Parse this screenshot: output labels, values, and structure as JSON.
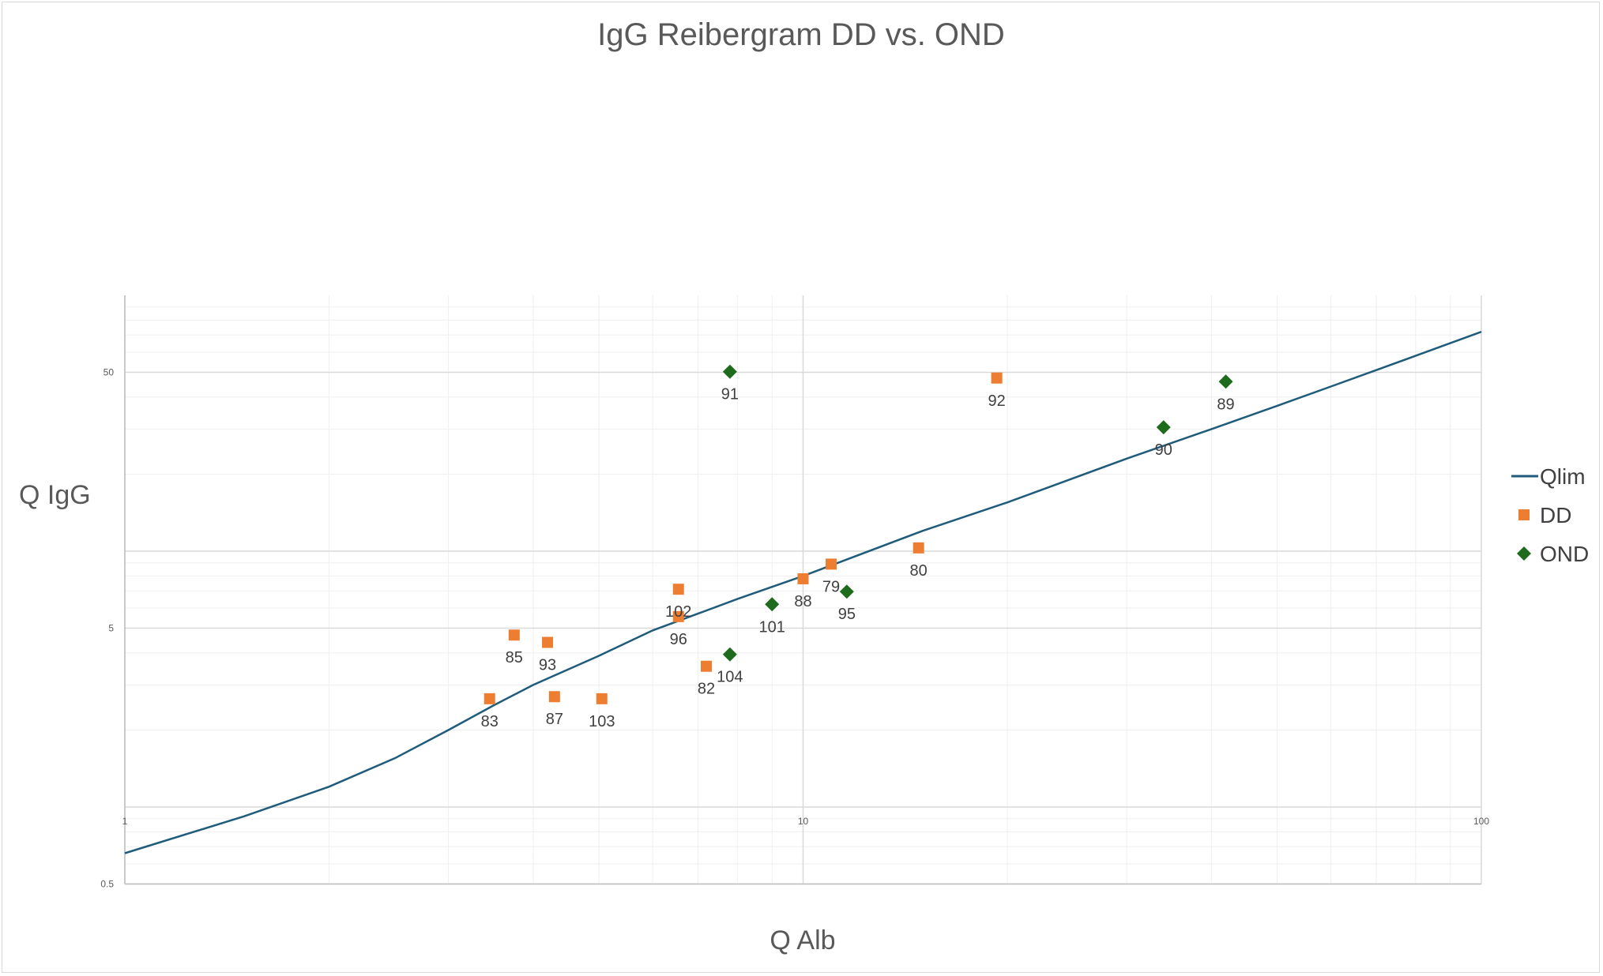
{
  "chart_data": {
    "type": "scatter",
    "title": "IgG Reibergram DD vs. OND",
    "xlabel": "Q Alb",
    "ylabel": "Q IgG",
    "x_scale": "log",
    "y_scale": "log",
    "xlim": [
      1,
      100
    ],
    "ylim": [
      0.5,
      100
    ],
    "x_ticks": [
      "1",
      "10",
      "100"
    ],
    "y_ticks": [
      "0.5",
      "5",
      "50"
    ],
    "grid": true,
    "legend_position": "right",
    "series": [
      {
        "name": "Qlim",
        "kind": "line",
        "color": "#1f5b7a",
        "points": [
          [
            1,
            0.66
          ],
          [
            1.5,
            0.92
          ],
          [
            2,
            1.2
          ],
          [
            2.5,
            1.55
          ],
          [
            3,
            2.0
          ],
          [
            3.5,
            2.5
          ],
          [
            4,
            3.0
          ],
          [
            5,
            3.9
          ],
          [
            6,
            4.9
          ],
          [
            7,
            5.7
          ],
          [
            8,
            6.5
          ],
          [
            10,
            8.0
          ],
          [
            15,
            12.0
          ],
          [
            20,
            15.5
          ],
          [
            30,
            23.0
          ],
          [
            40,
            30.0
          ],
          [
            50,
            37.0
          ],
          [
            60,
            44.0
          ],
          [
            70,
            51.0
          ],
          [
            80,
            58.0
          ],
          [
            100,
            72.0
          ]
        ]
      },
      {
        "name": "DD",
        "kind": "markers",
        "marker": "square",
        "color": "#ed7d31",
        "points": [
          {
            "x": 11,
            "y": 8.9,
            "label": "79"
          },
          {
            "x": 14.8,
            "y": 10.3,
            "label": "80"
          },
          {
            "x": 7.2,
            "y": 3.55,
            "label": "82"
          },
          {
            "x": 3.45,
            "y": 2.65,
            "label": "83"
          },
          {
            "x": 3.75,
            "y": 4.7,
            "label": "85"
          },
          {
            "x": 4.3,
            "y": 2.7,
            "label": "87"
          },
          {
            "x": 10,
            "y": 7.8,
            "label": "88"
          },
          {
            "x": 19.3,
            "y": 47.5,
            "label": "92"
          },
          {
            "x": 4.2,
            "y": 4.4,
            "label": "93"
          },
          {
            "x": 6.55,
            "y": 5.55,
            "label": "96"
          },
          {
            "x": 6.55,
            "y": 7.1,
            "label": "102"
          },
          {
            "x": 5.05,
            "y": 2.65,
            "label": "103"
          }
        ]
      },
      {
        "name": "OND",
        "kind": "markers",
        "marker": "diamond",
        "color": "#1e6b1e",
        "points": [
          {
            "x": 42,
            "y": 46,
            "label": "89"
          },
          {
            "x": 34,
            "y": 30.5,
            "label": "90"
          },
          {
            "x": 7.8,
            "y": 50.3,
            "label": "91"
          },
          {
            "x": 11.6,
            "y": 6.95,
            "label": "95"
          },
          {
            "x": 9,
            "y": 6.2,
            "label": "101"
          },
          {
            "x": 7.8,
            "y": 3.95,
            "label": "104"
          }
        ]
      }
    ]
  }
}
